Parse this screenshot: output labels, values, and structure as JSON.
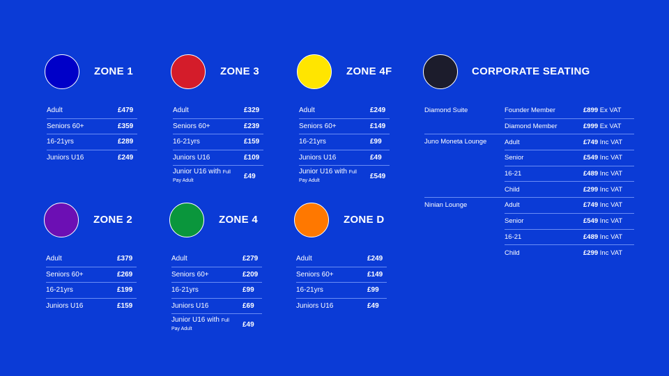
{
  "zones": [
    {
      "id": "zone-1",
      "title": "ZONE 1",
      "color": "#0000c8",
      "rows": [
        [
          "Adult",
          "£479"
        ],
        [
          "Seniors 60+",
          "£359"
        ],
        [
          "16-21yrs",
          "£289"
        ],
        [
          "Juniors U16",
          "£249"
        ]
      ]
    },
    {
      "id": "zone-3",
      "title": "ZONE 3",
      "color": "#d41c2a",
      "rows": [
        [
          "Adult",
          "£329"
        ],
        [
          "Seniors 60+",
          "£239"
        ],
        [
          "16-21yrs",
          "£159"
        ],
        [
          "Juniors U16",
          "£109"
        ],
        [
          "Junior U16 with",
          "£49",
          "Full",
          "Pay Adult"
        ]
      ]
    },
    {
      "id": "zone-4f",
      "title": "ZONE 4F",
      "color": "#ffe500",
      "rows": [
        [
          "Adult",
          "£249"
        ],
        [
          "Seniors 60+",
          "£149"
        ],
        [
          "16-21yrs",
          "£99"
        ],
        [
          "Juniors U16",
          "£49"
        ],
        [
          "Junior U16 with",
          "£549",
          "Full",
          "Pay Adult"
        ]
      ]
    },
    {
      "id": "zone-2",
      "title": "ZONE 2",
      "color": "#6c0fb4",
      "rows": [
        [
          "Adult",
          "£379"
        ],
        [
          "Seniors 60+",
          "£269"
        ],
        [
          "16-21yrs",
          "£199"
        ],
        [
          "Juniors U16",
          "£159"
        ]
      ]
    },
    {
      "id": "zone-4",
      "title": "ZONE 4",
      "color": "#0a963c",
      "rows": [
        [
          "Adult",
          "£279"
        ],
        [
          "Seniors 60+",
          "£209"
        ],
        [
          "16-21yrs",
          "£99"
        ],
        [
          "Juniors U16",
          "£69"
        ],
        [
          "Junior U16 with",
          "£49",
          "Full",
          "Pay Adult"
        ]
      ]
    },
    {
      "id": "zone-d",
      "title": "ZONE D",
      "color": "#ff7800",
      "rows": [
        [
          "Adult",
          "£249"
        ],
        [
          "Seniors 60+",
          "£149"
        ],
        [
          "16-21yrs",
          "£99"
        ],
        [
          "Juniors U16",
          "£49"
        ]
      ]
    }
  ],
  "corporate": {
    "title": "CORPORATE SEATING",
    "color": "#1c1c2c",
    "groups": [
      {
        "name": "Diamond Suite",
        "rows": [
          [
            "Founder Member",
            "£899",
            "Ex VAT"
          ],
          [
            "Diamond Member",
            "£999",
            "Ex VAT"
          ]
        ]
      },
      {
        "name": "Juno Moneta Lounge",
        "rows": [
          [
            "Adult",
            "£749",
            "Inc VAT"
          ],
          [
            "Senior",
            "£549",
            "Inc VAT"
          ],
          [
            "16-21",
            "£489",
            "Inc VAT"
          ],
          [
            "Child",
            "£299",
            "Inc VAT"
          ]
        ]
      },
      {
        "name": "Ninian Lounge",
        "rows": [
          [
            "Adult",
            "£749",
            "Inc VAT"
          ],
          [
            "Senior",
            "£549",
            "Inc VAT"
          ],
          [
            "16-21",
            "£489",
            "Inc VAT"
          ],
          [
            "Child",
            "£299",
            "Inc VAT"
          ]
        ]
      }
    ]
  }
}
